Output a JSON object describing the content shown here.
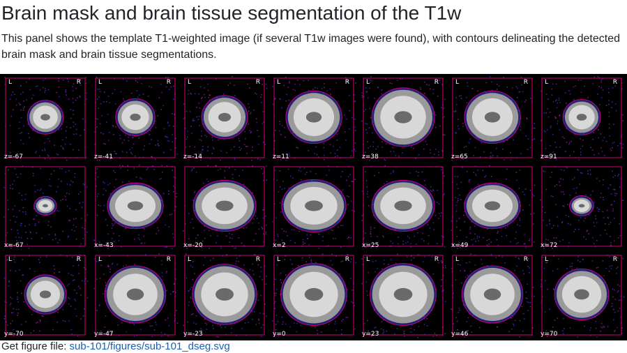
{
  "heading": "Brain mask and brain tissue segmentation of the T1w",
  "description": "This panel shows the template T1-weighted image (if several T1w images were found), with contours delineating the detected brain mask and brain tissue segmentations.",
  "orientation": {
    "left": "L",
    "right": "R"
  },
  "rows": [
    {
      "view": "axial",
      "coords": [
        "z=-67",
        "z=-41",
        "z=-14",
        "z=11",
        "z=38",
        "z=65",
        "z=91"
      ],
      "show_orient": true
    },
    {
      "view": "sagittal",
      "coords": [
        "x=-67",
        "x=-43",
        "x=-20",
        "x=2",
        "x=25",
        "x=49",
        "x=72"
      ],
      "show_orient": false
    },
    {
      "view": "coronal",
      "coords": [
        "y=-70",
        "y=-47",
        "y=-23",
        "y=0",
        "y=23",
        "y=46",
        "y=70"
      ],
      "show_orient": true
    }
  ],
  "footer": {
    "label": "Get figure file: ",
    "link": "sub-101/figures/sub-101_dseg.svg"
  },
  "colors": {
    "contour": "#d3007a",
    "tissue": "#3b3bd8",
    "brain": "#d8d8d8",
    "background": "#000000"
  }
}
